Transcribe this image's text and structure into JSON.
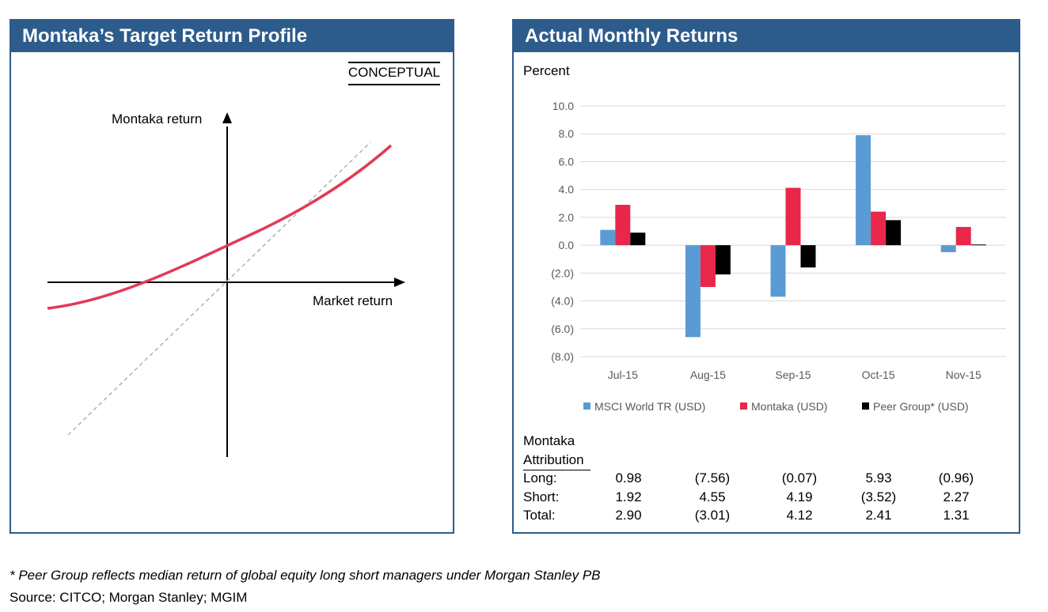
{
  "left_panel": {
    "title": "Montaka’s Target Return Profile",
    "tag": "CONCEPTUAL",
    "y_axis_label": "Montaka return",
    "x_axis_label": "Market return"
  },
  "right_panel": {
    "title": "Actual Monthly Returns",
    "unit_label": "Percent"
  },
  "chart_data": {
    "type": "bar",
    "categories": [
      "Jul-15",
      "Aug-15",
      "Sep-15",
      "Oct-15",
      "Nov-15"
    ],
    "series": [
      {
        "name": "MSCI World TR (USD)",
        "color": "#5b9bd5",
        "values": [
          1.1,
          -6.6,
          -3.7,
          7.9,
          -0.5
        ]
      },
      {
        "name": "Montaka (USD)",
        "color": "#e8274b",
        "values": [
          2.9,
          -3.0,
          4.12,
          2.41,
          1.31
        ]
      },
      {
        "name": "Peer Group* (USD)",
        "color": "#000000",
        "values": [
          0.9,
          -2.1,
          -1.6,
          1.8,
          0.05
        ]
      }
    ],
    "ylim": [
      -8,
      10
    ],
    "yticks": [
      "10.0",
      "8.0",
      "6.0",
      "4.0",
      "2.0",
      "0.0",
      "(2.0)",
      "(4.0)",
      "(6.0)",
      "(8.0)"
    ],
    "ytick_values": [
      10,
      8,
      6,
      4,
      2,
      0,
      -2,
      -4,
      -6,
      -8
    ],
    "grid": true,
    "legend_position": "bottom"
  },
  "attribution": {
    "title_line1": "Montaka",
    "title_line2": "Attribution",
    "rows": [
      {
        "label": "Long:",
        "values": [
          "0.98",
          "(7.56)",
          "(0.07)",
          "5.93",
          "(0.96)"
        ]
      },
      {
        "label": "Short:",
        "values": [
          "1.92",
          "4.55",
          "4.19",
          "(3.52)",
          "2.27"
        ]
      },
      {
        "label": "Total:",
        "values": [
          "2.90",
          "(3.01)",
          "4.12",
          "2.41",
          "1.31"
        ]
      }
    ]
  },
  "footnote": "* Peer Group reflects median return of global equity long short managers under Morgan Stanley PB",
  "source": "Source: CITCO; Morgan Stanley; MGIM"
}
